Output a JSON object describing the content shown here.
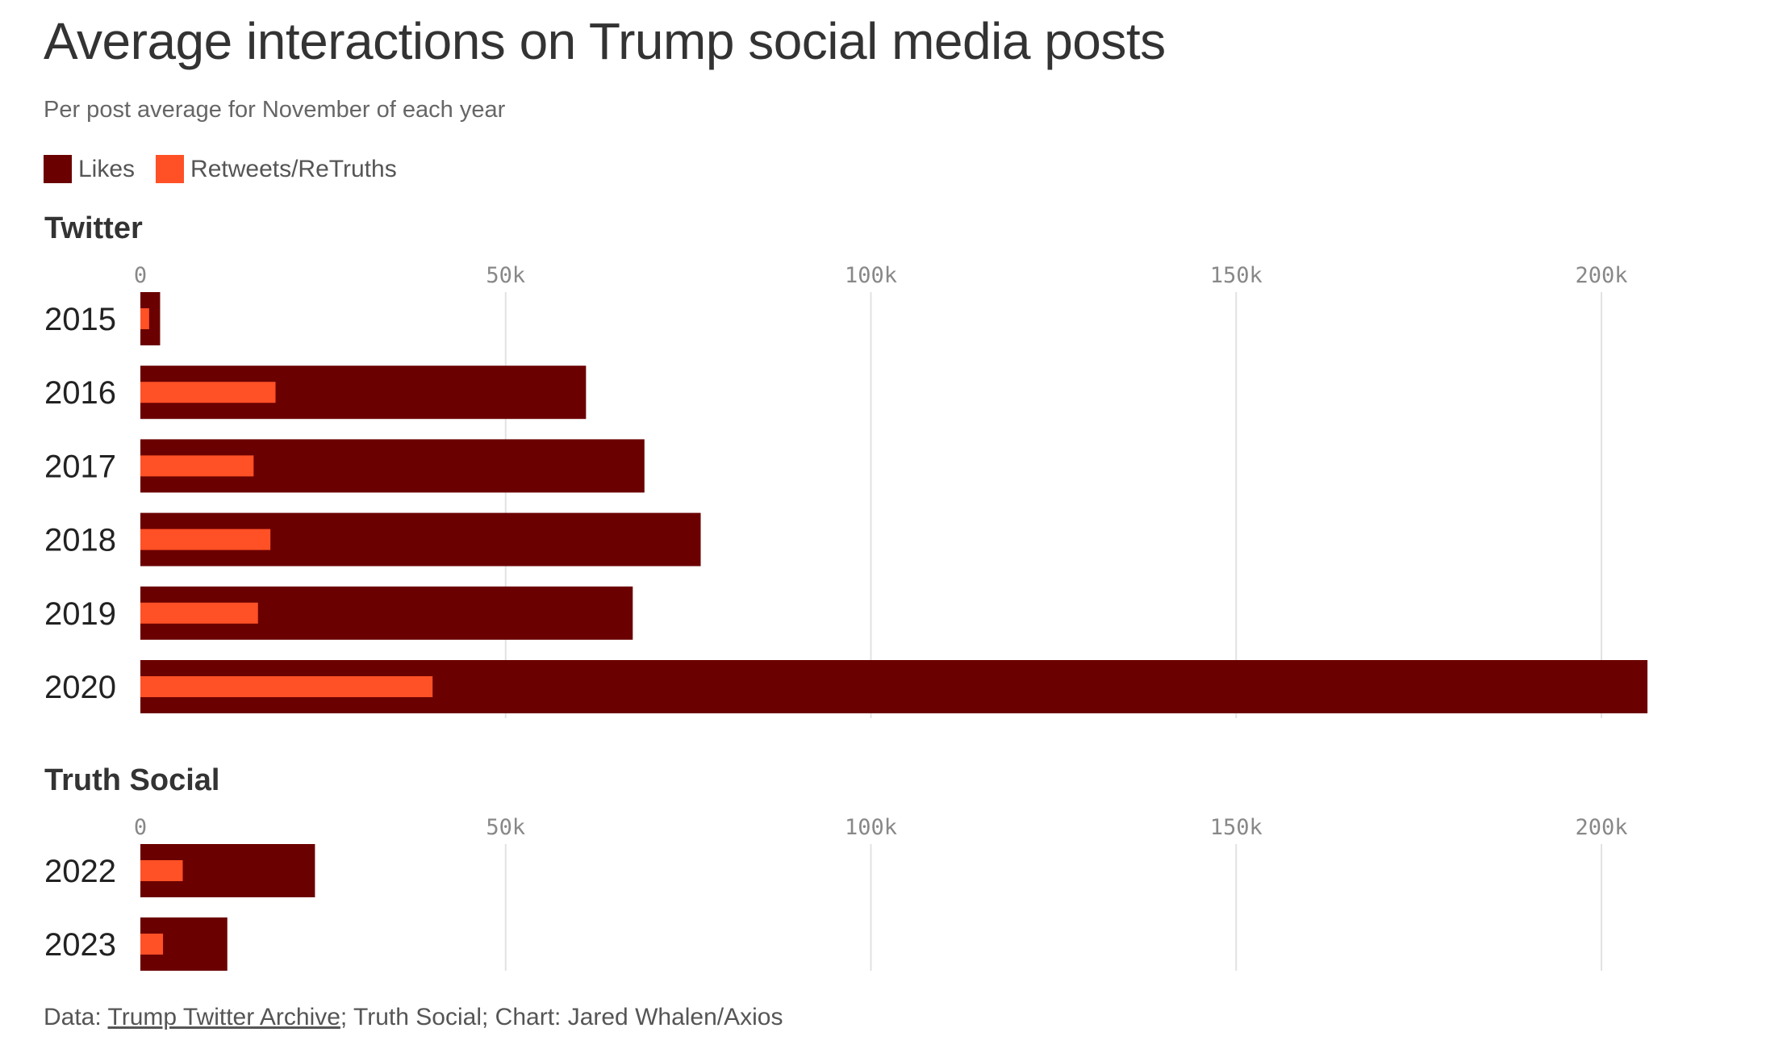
{
  "title": "Average interactions on Trump social media posts",
  "subtitle": "Per post average for November of each year",
  "legend": {
    "likes_label": "Likes",
    "retweets_label": "Retweets/ReTruths"
  },
  "colors": {
    "likes": "#6b0000",
    "retweets": "#ff5026",
    "grid": "#e2e2e2",
    "tick_text": "#888888"
  },
  "footer": {
    "prefix": "Data: ",
    "source_link": "Trump Twitter Archive",
    "rest": "; Truth Social; Chart: Jared Whalen/Axios"
  },
  "chart_data": [
    {
      "type": "bar",
      "orientation": "horizontal",
      "title": "Twitter",
      "categories": [
        "2015",
        "2016",
        "2017",
        "2018",
        "2019",
        "2020"
      ],
      "series": [
        {
          "name": "Likes",
          "values": [
            2700,
            61000,
            69000,
            76700,
            67400,
            206300
          ]
        },
        {
          "name": "Retweets/ReTruths",
          "values": [
            1200,
            18500,
            15500,
            17800,
            16100,
            40000
          ]
        }
      ],
      "xlim": [
        0,
        210000
      ],
      "xticks": [
        0,
        50000,
        100000,
        150000,
        200000
      ],
      "xtick_labels": [
        "0",
        "50k",
        "100k",
        "150k",
        "200k"
      ],
      "grid": true
    },
    {
      "type": "bar",
      "orientation": "horizontal",
      "title": "Truth Social",
      "categories": [
        "2022",
        "2023"
      ],
      "series": [
        {
          "name": "Likes",
          "values": [
            23900,
            11900
          ]
        },
        {
          "name": "Retweets/ReTruths",
          "values": [
            5800,
            3100
          ]
        }
      ],
      "xlim": [
        0,
        210000
      ],
      "xticks": [
        0,
        50000,
        100000,
        150000,
        200000
      ],
      "xtick_labels": [
        "0",
        "50k",
        "100k",
        "150k",
        "200k"
      ],
      "grid": true
    }
  ]
}
